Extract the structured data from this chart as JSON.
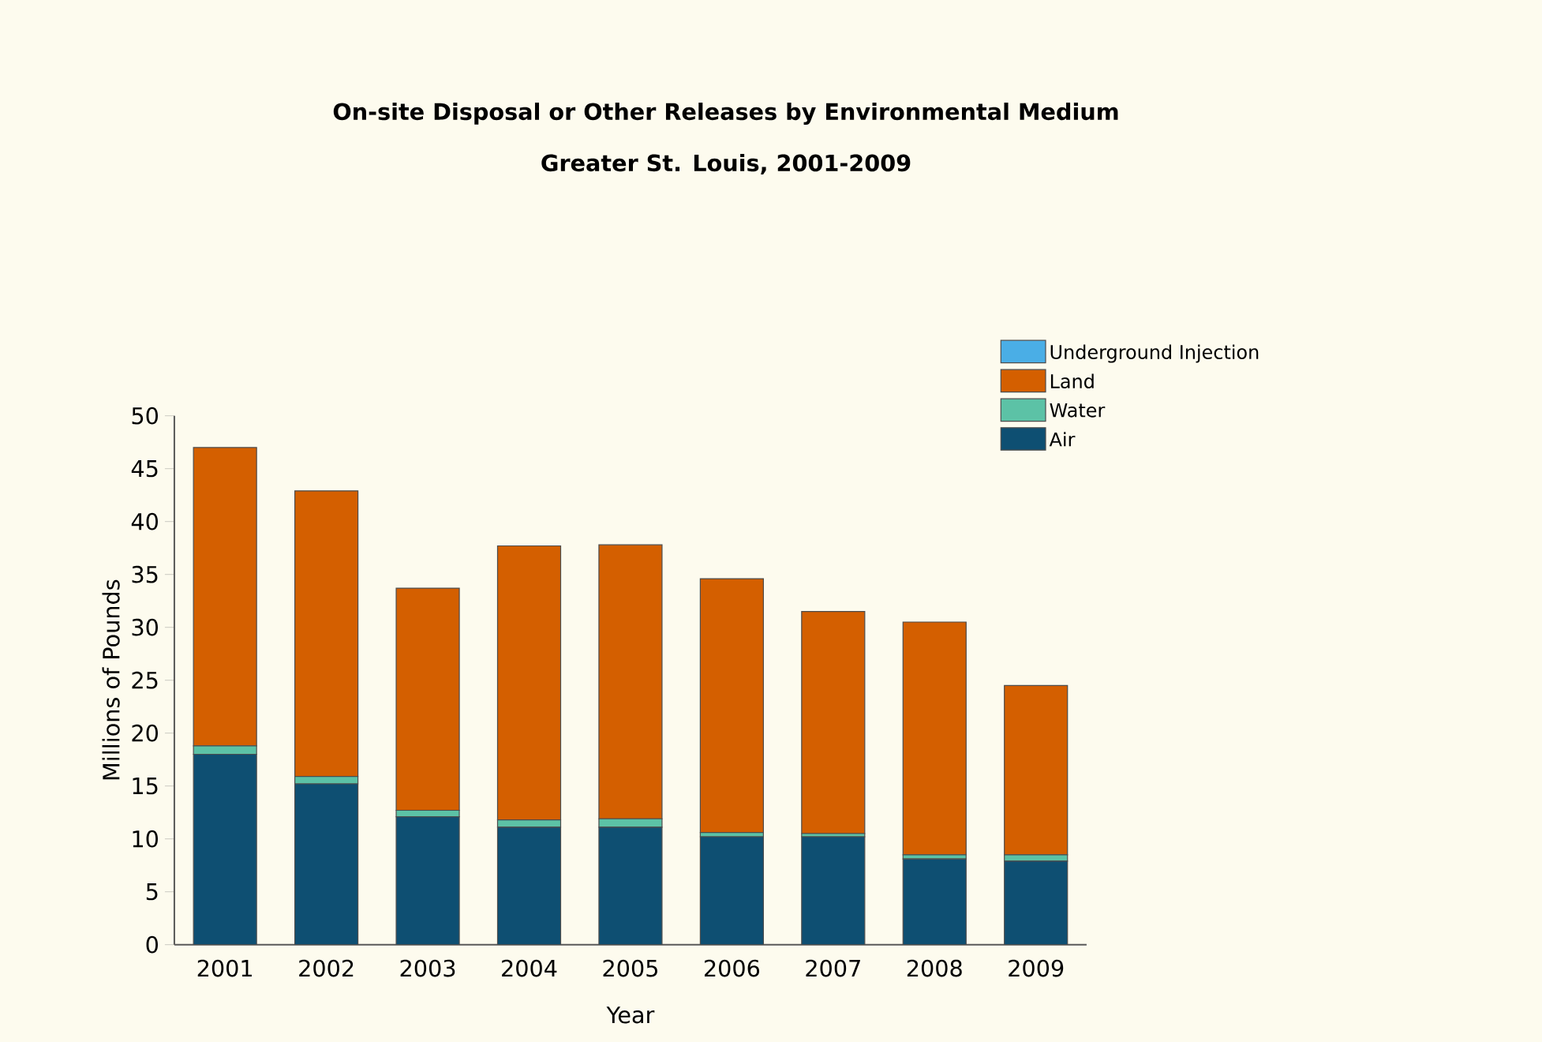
{
  "chart_data": {
    "type": "bar",
    "stacked": true,
    "title": "On-site Disposal or Other Releases by Environmental Medium",
    "subtitle": "Greater St. Louis, 2001-2009",
    "xlabel": "Year",
    "ylabel": "Millions of Pounds",
    "categories": [
      "2001",
      "2002",
      "2003",
      "2004",
      "2005",
      "2006",
      "2007",
      "2008",
      "2009"
    ],
    "series": [
      {
        "name": "Air",
        "color": "#0e4f72",
        "values": [
          18,
          15.2,
          12.1,
          11.1,
          11.1,
          10.2,
          10.2,
          8.1,
          7.9
        ]
      },
      {
        "name": "Water",
        "color": "#5cc2a6",
        "values": [
          0.8,
          0.7,
          0.6,
          0.7,
          0.8,
          0.4,
          0.3,
          0.4,
          0.6
        ]
      },
      {
        "name": "Land",
        "color": "#d45f00",
        "values": [
          28.2,
          27,
          21,
          25.9,
          25.9,
          24,
          21,
          22,
          16
        ]
      },
      {
        "name": "Underground Injection",
        "color": "#4aaee6",
        "values": [
          0,
          0,
          0,
          0,
          0,
          0,
          0,
          0,
          0
        ]
      }
    ],
    "ylim": [
      0,
      50
    ],
    "yticks": [
      0,
      5,
      10,
      15,
      20,
      25,
      30,
      35,
      40,
      45,
      50
    ],
    "grid": false,
    "legend": "right"
  }
}
